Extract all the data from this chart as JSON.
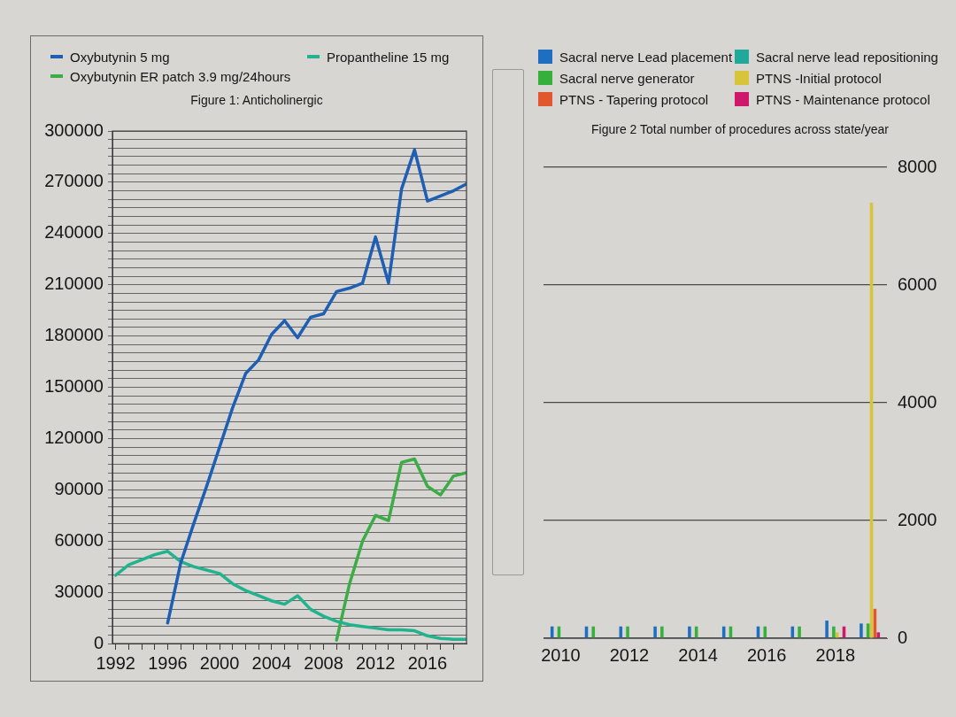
{
  "chart_data": [
    {
      "type": "line",
      "title": "Figure 1: Anticholinergic",
      "legend": "top",
      "grid": "y",
      "marker": "none",
      "line_style": "solid",
      "xlim": [
        1991.75,
        2019
      ],
      "xticks": [
        1992,
        {
          "value": 1993,
          "label": null
        },
        {
          "value": 1994,
          "label": null
        },
        {
          "value": 1995,
          "label": null
        },
        1996,
        {
          "value": 1997,
          "label": null
        },
        {
          "value": 1998,
          "label": null
        },
        {
          "value": 1999,
          "label": null
        },
        2000,
        {
          "value": 2001,
          "label": null
        },
        {
          "value": 2002,
          "label": null
        },
        {
          "value": 2003,
          "label": null
        },
        2004,
        {
          "value": 2005,
          "label": null
        },
        {
          "value": 2006,
          "label": null
        },
        {
          "value": 2007,
          "label": null
        },
        2008,
        {
          "value": 2009,
          "label": null
        },
        {
          "value": 2010,
          "label": null
        },
        {
          "value": 2011,
          "label": null
        },
        2012,
        {
          "value": 2013,
          "label": null
        },
        {
          "value": 2014,
          "label": null
        },
        {
          "value": 2015,
          "label": null
        },
        2016,
        {
          "value": 2017,
          "label": null
        },
        {
          "value": 2018,
          "label": null
        }
      ],
      "ylim": [
        0,
        300000
      ],
      "yticks": [
        0,
        {
          "value": 5000,
          "label": null
        },
        {
          "value": 10000,
          "label": null
        },
        {
          "value": 15000,
          "label": null
        },
        {
          "value": 20000,
          "label": null
        },
        {
          "value": 25000,
          "label": null
        },
        30000,
        {
          "value": 35000,
          "label": null
        },
        {
          "value": 40000,
          "label": null
        },
        {
          "value": 45000,
          "label": null
        },
        {
          "value": 50000,
          "label": null
        },
        {
          "value": 55000,
          "label": null
        },
        60000,
        {
          "value": 65000,
          "label": null
        },
        {
          "value": 70000,
          "label": null
        },
        {
          "value": 75000,
          "label": null
        },
        {
          "value": 80000,
          "label": null
        },
        {
          "value": 85000,
          "label": null
        },
        90000,
        {
          "value": 95000,
          "label": null
        },
        {
          "value": 100000,
          "label": null
        },
        {
          "value": 105000,
          "label": null
        },
        {
          "value": 110000,
          "label": null
        },
        {
          "value": 115000,
          "label": null
        },
        120000,
        {
          "value": 125000,
          "label": null
        },
        {
          "value": 130000,
          "label": null
        },
        {
          "value": 135000,
          "label": null
        },
        {
          "value": 140000,
          "label": null
        },
        {
          "value": 145000,
          "label": null
        },
        150000,
        {
          "value": 155000,
          "label": null
        },
        {
          "value": 160000,
          "label": null
        },
        {
          "value": 165000,
          "label": null
        },
        {
          "value": 170000,
          "label": null
        },
        {
          "value": 175000,
          "label": null
        },
        180000,
        {
          "value": 185000,
          "label": null
        },
        {
          "value": 190000,
          "label": null
        },
        {
          "value": 195000,
          "label": null
        },
        {
          "value": 200000,
          "label": null
        },
        {
          "value": 205000,
          "label": null
        },
        210000,
        {
          "value": 215000,
          "label": null
        },
        {
          "value": 220000,
          "label": null
        },
        {
          "value": 225000,
          "label": null
        },
        {
          "value": 230000,
          "label": null
        },
        {
          "value": 235000,
          "label": null
        },
        240000,
        {
          "value": 245000,
          "label": null
        },
        {
          "value": 250000,
          "label": null
        },
        {
          "value": 255000,
          "label": null
        },
        {
          "value": 260000,
          "label": null
        },
        {
          "value": 265000,
          "label": null
        },
        270000,
        {
          "value": 275000,
          "label": null
        },
        {
          "value": 280000,
          "label": null
        },
        {
          "value": 285000,
          "label": null
        },
        {
          "value": 290000,
          "label": null
        },
        {
          "value": 295000,
          "label": null
        },
        300000
      ],
      "series": [
        {
          "name": "Oxybutynin 5 mg",
          "color": "#1f5fb3",
          "x": [
            1996,
            1997,
            1998,
            1999,
            2000,
            2001,
            2002,
            2003,
            2004,
            2005,
            2006,
            2007,
            2008,
            2009,
            2010,
            2011,
            2012,
            2013,
            2014,
            2015,
            2016,
            2017,
            2018,
            2019
          ],
          "values": [
            12000,
            47000,
            70000,
            92000,
            115000,
            138000,
            158000,
            166000,
            181000,
            189000,
            179000,
            191000,
            193000,
            206000,
            208000,
            211000,
            238000,
            211000,
            266000,
            289000,
            259000,
            262000,
            265000,
            269000
          ]
        },
        {
          "name": "Propantheline 15 mg",
          "color": "#22b38e",
          "x": [
            1992,
            1993,
            1994,
            1995,
            1996,
            1997,
            1998,
            1999,
            2000,
            2001,
            2002,
            2003,
            2004,
            2005,
            2006,
            2007,
            2008,
            2009,
            2010,
            2011,
            2012,
            2013,
            2014,
            2015,
            2016,
            2017,
            2018,
            2019
          ],
          "values": [
            40000,
            46000,
            49000,
            52000,
            54000,
            48000,
            45000,
            43000,
            41000,
            35000,
            31000,
            28000,
            25000,
            23000,
            28000,
            20000,
            16000,
            13000,
            11000,
            10000,
            9000,
            8000,
            8000,
            7500,
            4500,
            3000,
            2500,
            2500
          ]
        },
        {
          "name": "Oxybutynin ER patch 3.9 mg/24hours",
          "color": "#3cac46",
          "x": [
            2009,
            2010,
            2011,
            2012,
            2013,
            2014,
            2015,
            2016,
            2017,
            2018,
            2019
          ],
          "values": [
            2000,
            35000,
            60000,
            75000,
            72000,
            106000,
            108000,
            92000,
            87000,
            98000,
            100000
          ]
        }
      ]
    },
    {
      "type": "bar",
      "title": "Figure 2 Total number of procedures across state/year",
      "legend": "top",
      "grid": "y",
      "categories": [
        "2010",
        null,
        "2012",
        null,
        "2014",
        null,
        "2016",
        null,
        "2018",
        null
      ],
      "ylim": [
        0,
        8000
      ],
      "yticks": [
        0,
        2000,
        4000,
        6000,
        8000
      ],
      "series": [
        {
          "name": "Sacral nerve Lead placement",
          "color": "#1f6fc0",
          "values": [
            200,
            200,
            200,
            200,
            200,
            200,
            200,
            200,
            300,
            250
          ]
        },
        {
          "name": "Sacral nerve lead repositioning",
          "color": "#22a89a",
          "values": [
            0,
            0,
            0,
            0,
            0,
            0,
            0,
            0,
            0,
            0
          ]
        },
        {
          "name": "Sacral nerve generator",
          "color": "#35b03a",
          "values": [
            200,
            200,
            200,
            200,
            200,
            200,
            200,
            200,
            200,
            250
          ]
        },
        {
          "name": "PTNS -Initial protocol",
          "color": "#d8c43a",
          "values": [
            0,
            0,
            0,
            0,
            0,
            0,
            0,
            0,
            100,
            7400
          ]
        },
        {
          "name": "PTNS - Tapering protocol",
          "color": "#e0582c",
          "values": [
            0,
            0,
            0,
            0,
            0,
            0,
            0,
            0,
            0,
            500
          ]
        },
        {
          "name": "PTNS - Maintenance protocol",
          "color": "#d0186a",
          "values": [
            0,
            0,
            0,
            0,
            0,
            0,
            0,
            0,
            200,
            100
          ]
        }
      ]
    }
  ]
}
